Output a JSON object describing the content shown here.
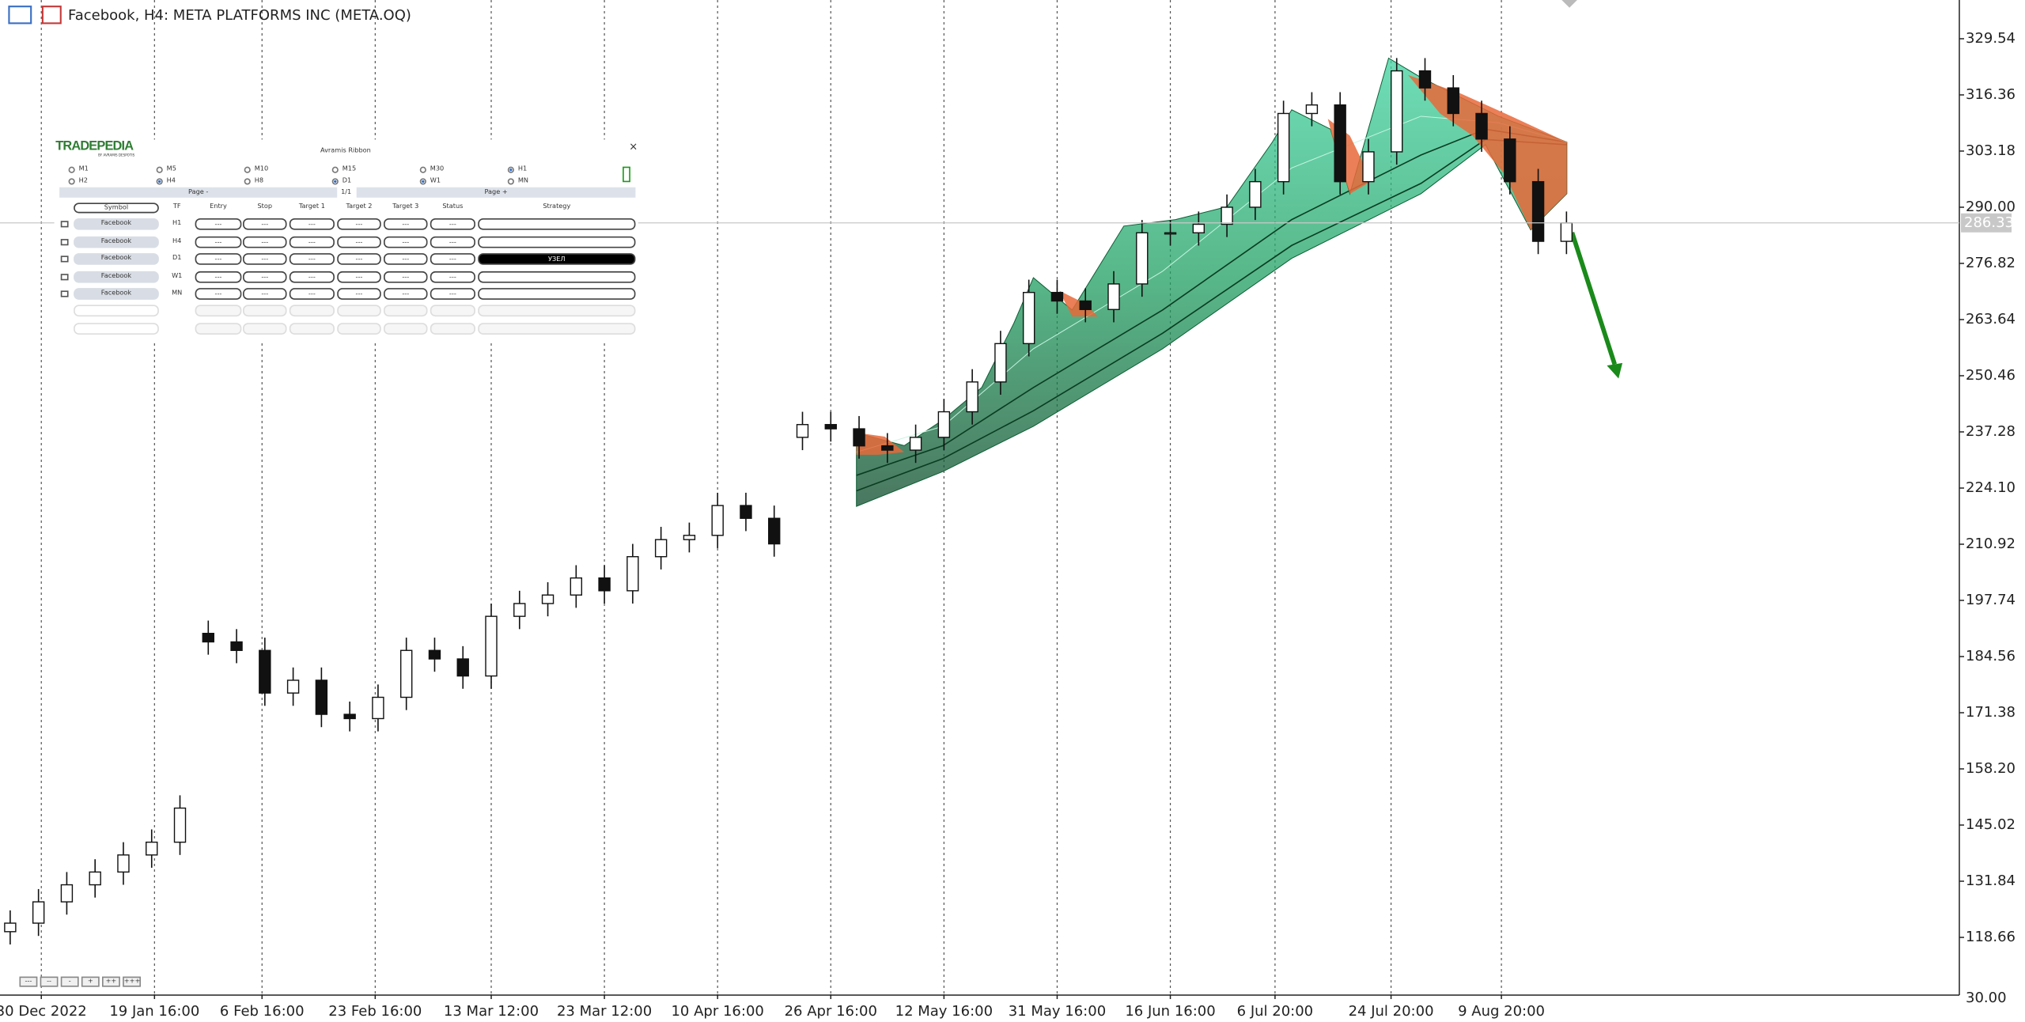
{
  "chart_data": {
    "type": "candlestick",
    "title": "Facebook, H4:  META PLATFORMS INC (META.OQ)",
    "open": [
      120,
      122,
      127,
      131,
      134,
      138,
      141,
      190,
      188,
      186,
      176,
      179,
      171,
      170,
      175,
      186,
      184,
      180,
      194,
      197,
      199,
      203,
      200,
      208,
      212,
      213,
      220,
      217,
      236,
      239,
      238,
      234,
      233,
      236,
      242,
      249,
      258,
      270,
      268,
      266,
      272,
      284,
      284,
      286,
      290,
      296,
      312,
      314,
      296,
      303,
      322,
      318,
      312,
      306,
      296,
      282
    ],
    "high": [
      125,
      130,
      134,
      137,
      141,
      144,
      152,
      193,
      191,
      189,
      182,
      182,
      174,
      178,
      189,
      189,
      187,
      197,
      200,
      202,
      206,
      206,
      211,
      215,
      216,
      223,
      223,
      220,
      242,
      242,
      241,
      237,
      239,
      245,
      252,
      261,
      273,
      273,
      271,
      275,
      287,
      287,
      289,
      293,
      299,
      315,
      317,
      317,
      306,
      325,
      325,
      321,
      315,
      309,
      299,
      289
    ],
    "low": [
      117,
      119,
      124,
      128,
      131,
      135,
      138,
      185,
      183,
      173,
      173,
      168,
      167,
      167,
      172,
      181,
      177,
      177,
      191,
      194,
      196,
      197,
      197,
      205,
      209,
      210,
      214,
      208,
      233,
      235,
      231,
      230,
      230,
      233,
      239,
      246,
      255,
      265,
      263,
      263,
      269,
      281,
      281,
      283,
      287,
      293,
      309,
      293,
      293,
      300,
      315,
      309,
      303,
      293,
      279,
      279
    ],
    "close": [
      122,
      127,
      131,
      134,
      138,
      141,
      149,
      188,
      186,
      176,
      179,
      171,
      170,
      175,
      186,
      184,
      180,
      194,
      197,
      199,
      203,
      200,
      208,
      212,
      213,
      220,
      217,
      211,
      239,
      238,
      234,
      233,
      236,
      242,
      249,
      258,
      270,
      268,
      266,
      272,
      284,
      284,
      286,
      290,
      296,
      312,
      314,
      296,
      303,
      322,
      318,
      312,
      306,
      296,
      282,
      286.33
    ],
    "xlim": [
      -0.36,
      68.8
    ],
    "xticks": [
      {
        "value": 1.1,
        "label": "30 Dec 2022"
      },
      {
        "value": 5.1,
        "label": "19 Jan 16:00"
      },
      {
        "value": 8.9,
        "label": "6 Feb 16:00"
      },
      {
        "value": 12.9,
        "label": "23 Feb 16:00"
      },
      {
        "value": 17,
        "label": "13 Mar 12:00"
      },
      {
        "value": 21,
        "label": "23 Mar 12:00"
      },
      {
        "value": 25,
        "label": "10 Apr 16:00"
      },
      {
        "value": 29,
        "label": "26 Apr 16:00"
      },
      {
        "value": 33,
        "label": "12 May 16:00"
      },
      {
        "value": 37,
        "label": "31 May 16:00"
      },
      {
        "value": 41,
        "label": "16 Jun 16:00"
      },
      {
        "value": 44.7,
        "label": "6 Jul 20:00"
      },
      {
        "value": 48.8,
        "label": "24 Jul 20:00"
      },
      {
        "value": 52.7,
        "label": "9 Aug 20:00"
      }
    ],
    "ylim": [
      105.3,
      338.63
    ],
    "yticks": [
      329.54,
      316.36,
      303.18,
      {
        "value": 290,
        "label": "290.00"
      },
      276.82,
      263.64,
      250.46,
      237.28,
      {
        "value": 224.1,
        "label": "224.10"
      },
      210.92,
      197.74,
      184.56,
      171.38,
      {
        "value": 158.2,
        "label": "158.20"
      },
      145.02,
      131.84,
      118.66
    ],
    "last_price": 286.33,
    "scale_label": "30.00",
    "grid": true
  },
  "panel": {
    "logo": "TRADEPEDIA",
    "logo_sub": "BY AVRAMIS DESPOTIS",
    "title": "Avramis Ribbon",
    "close": "×",
    "timeframes": [
      {
        "label": "M1",
        "checked": false
      },
      {
        "label": "M5",
        "checked": false
      },
      {
        "label": "M10",
        "checked": false
      },
      {
        "label": "M15",
        "checked": false
      },
      {
        "label": "M30",
        "checked": false
      },
      {
        "label": "H1",
        "checked": true
      },
      {
        "label": "H2",
        "checked": false
      },
      {
        "label": "H4",
        "checked": true
      },
      {
        "label": "H8",
        "checked": false
      },
      {
        "label": "D1",
        "checked": true
      },
      {
        "label": "W1",
        "checked": true
      },
      {
        "label": "MN",
        "checked": false
      }
    ],
    "pager": {
      "prev": "Page -",
      "page": "1/1",
      "next": "Page +"
    },
    "columns": [
      "Symbol",
      "TF",
      "Entry",
      "Stop",
      "Target 1",
      "Target 2",
      "Target 3",
      "Status",
      "Strategy"
    ],
    "rows": [
      {
        "symbol": "Facebook",
        "tf": "H1",
        "cells": [
          "---",
          "---",
          "---",
          "---",
          "---",
          "---"
        ]
      },
      {
        "symbol": "Facebook",
        "tf": "H4",
        "cells": [
          "---",
          "---",
          "---",
          "---",
          "---",
          "---"
        ]
      },
      {
        "symbol": "Facebook",
        "tf": "D1",
        "cells": [
          "---",
          "---",
          "---",
          "---",
          "---",
          "---"
        ],
        "strategy": "УЗЕЛ"
      },
      {
        "symbol": "Facebook",
        "tf": "W1",
        "cells": [
          "---",
          "---",
          "---",
          "---",
          "---",
          "---"
        ]
      },
      {
        "symbol": "Facebook",
        "tf": "MN",
        "cells": [
          "---",
          "---",
          "---",
          "---",
          "---",
          "---"
        ]
      }
    ]
  },
  "buttons": [
    "---",
    "--",
    "-",
    "+",
    "++",
    "+++"
  ]
}
